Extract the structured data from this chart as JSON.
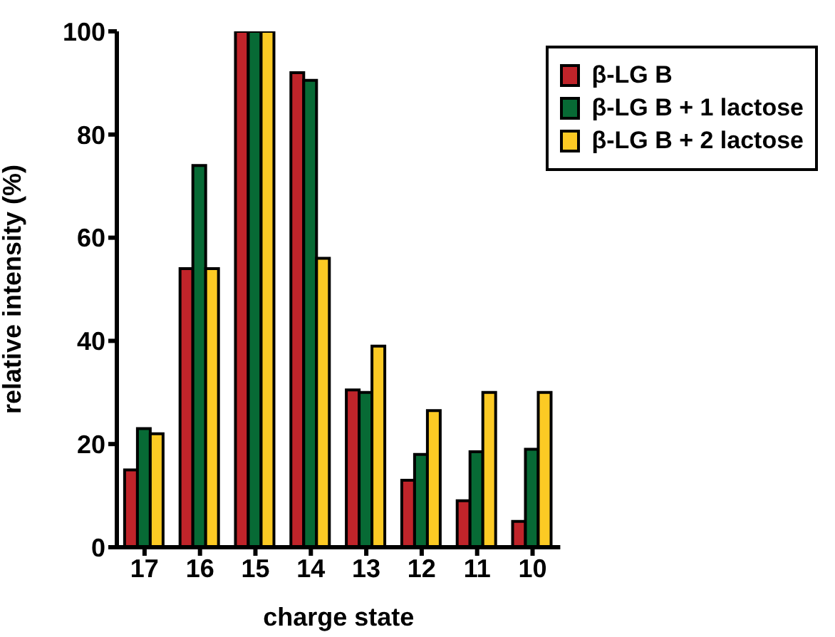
{
  "chart_data": {
    "type": "bar",
    "xlabel": "charge state",
    "ylabel": "relative intensity (%)",
    "categories": [
      "17",
      "16",
      "15",
      "14",
      "13",
      "12",
      "11",
      "10"
    ],
    "series": [
      {
        "name": "β-LG B",
        "color": "#c0242a",
        "values": [
          15,
          54,
          100,
          92,
          30.5,
          13,
          9,
          5
        ]
      },
      {
        "name": "β-LG B + 1 lactose",
        "color": "#076a35",
        "values": [
          23,
          74,
          100,
          90.5,
          30,
          18,
          18.5,
          19
        ]
      },
      {
        "name": "β-LG B + 2 lactose",
        "color": "#fcca24",
        "values": [
          22,
          54,
          100,
          56,
          39,
          26.5,
          30,
          30
        ]
      }
    ],
    "ylim": [
      0,
      100
    ],
    "yticks": [
      0,
      20,
      40,
      60,
      80,
      100
    ],
    "grid": false,
    "legend": "top right"
  }
}
